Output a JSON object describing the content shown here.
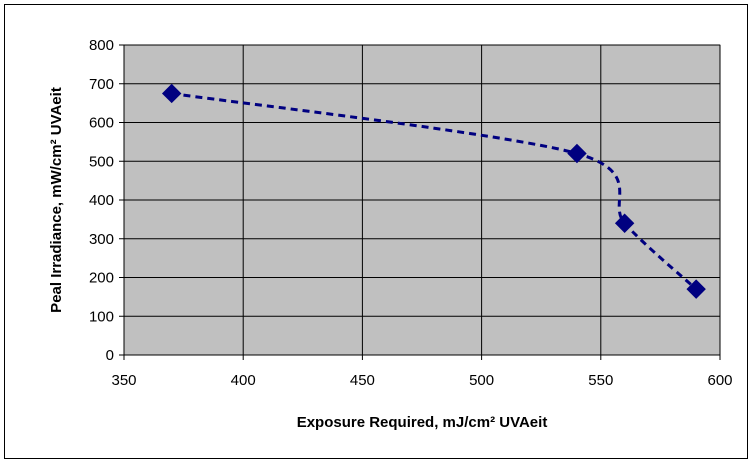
{
  "chart_data": {
    "type": "scatter",
    "title": "",
    "xlabel": "Exposure Required, mJ/cm² UVAeit",
    "ylabel": "Peal Irradiance, mW/cm² UVAeit",
    "xlim": [
      350,
      600
    ],
    "ylim": [
      0,
      800
    ],
    "x_ticks": [
      350,
      400,
      450,
      500,
      550,
      600
    ],
    "y_ticks": [
      0,
      100,
      200,
      300,
      400,
      500,
      600,
      700,
      800
    ],
    "grid": true,
    "legend": "none",
    "series": [
      {
        "marker": "diamond",
        "trendline": "dashed",
        "points": [
          {
            "x": 370,
            "y": 675
          },
          {
            "x": 540,
            "y": 520
          },
          {
            "x": 560,
            "y": 340
          },
          {
            "x": 590,
            "y": 170
          }
        ]
      }
    ],
    "colors": {
      "plot_background": "#c0c0c0",
      "marker": "#000080",
      "trendline": "#000080",
      "grid": "#000000"
    }
  }
}
